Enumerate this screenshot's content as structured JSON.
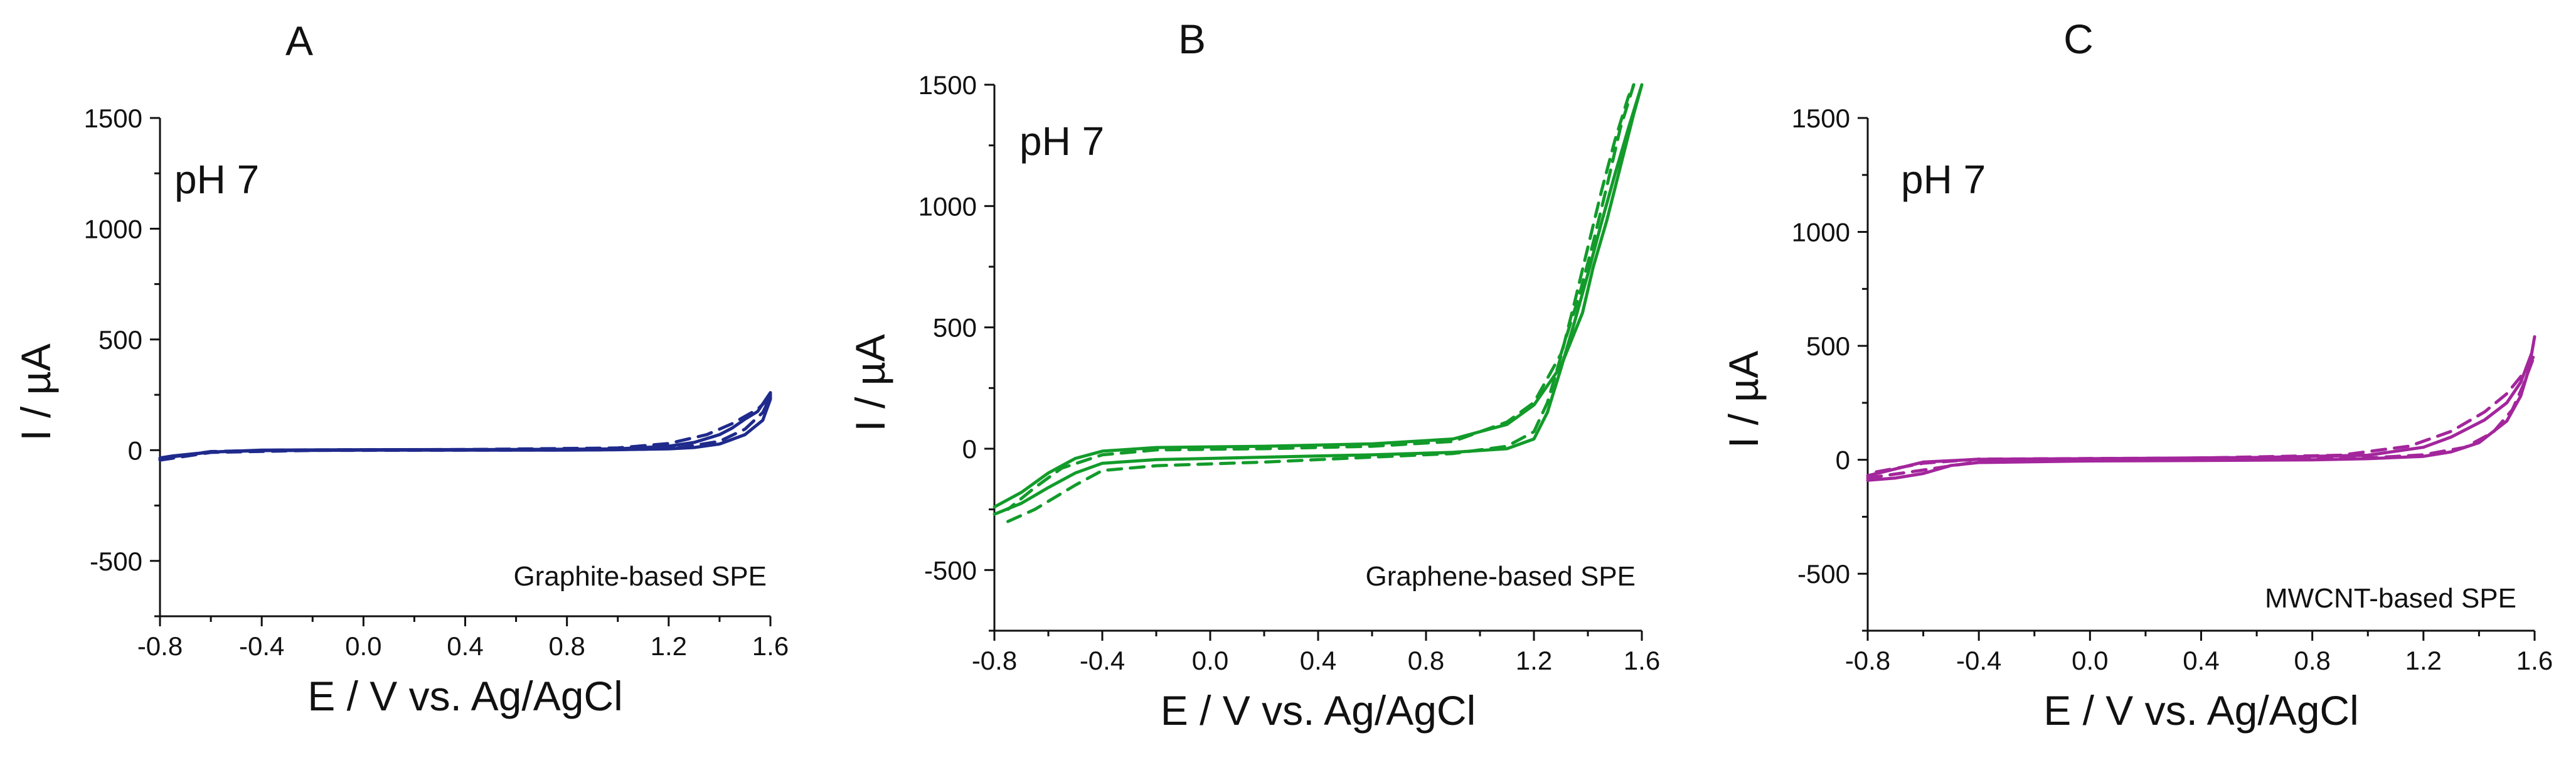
{
  "chart_data": [
    {
      "type": "line",
      "panel": "A",
      "annotation": "pH 7",
      "electrode": "Graphite-based SPE",
      "xlabel": "E / V vs. Ag/AgCl",
      "ylabel": "I / µA",
      "xlim": [
        -0.8,
        1.6
      ],
      "ylim": [
        -750,
        1500
      ],
      "xticks": [
        "-0.8",
        "-0.4",
        "0.0",
        "0.4",
        "0.8",
        "1.2",
        "1.6"
      ],
      "yticks": [
        "-500",
        "0",
        "500",
        "1000",
        "1500"
      ],
      "color": "#1f2a8c",
      "series": [
        {
          "name": "solid",
          "style": "solid",
          "points": [
            [
              -0.8,
              -40
            ],
            [
              -0.75,
              -30
            ],
            [
              -0.6,
              -8
            ],
            [
              -0.4,
              -2
            ],
            [
              0.0,
              0
            ],
            [
              0.4,
              0
            ],
            [
              0.8,
              0
            ],
            [
              1.0,
              2
            ],
            [
              1.2,
              6
            ],
            [
              1.3,
              12
            ],
            [
              1.4,
              28
            ],
            [
              1.5,
              70
            ],
            [
              1.57,
              135
            ],
            [
              1.6,
              230
            ],
            [
              1.6,
              260
            ],
            [
              1.55,
              175
            ],
            [
              1.5,
              140
            ],
            [
              1.45,
              100
            ],
            [
              1.4,
              70
            ],
            [
              1.3,
              35
            ],
            [
              1.2,
              18
            ],
            [
              1.0,
              6
            ],
            [
              0.6,
              3
            ],
            [
              0.0,
              2
            ],
            [
              -0.4,
              0
            ],
            [
              -0.6,
              -8
            ],
            [
              -0.75,
              -26
            ],
            [
              -0.8,
              -35
            ]
          ]
        },
        {
          "name": "dashed",
          "style": "dashed",
          "points": [
            [
              -0.8,
              -45
            ],
            [
              -0.6,
              -10
            ],
            [
              -0.2,
              -1
            ],
            [
              0.4,
              0
            ],
            [
              0.9,
              1
            ],
            [
              1.1,
              4
            ],
            [
              1.25,
              12
            ],
            [
              1.4,
              40
            ],
            [
              1.5,
              95
            ],
            [
              1.57,
              170
            ],
            [
              1.6,
              240
            ],
            [
              1.55,
              185
            ],
            [
              1.45,
              120
            ],
            [
              1.35,
              70
            ],
            [
              1.2,
              30
            ],
            [
              1.0,
              10
            ],
            [
              0.4,
              3
            ],
            [
              -0.3,
              1
            ],
            [
              -0.6,
              -6
            ],
            [
              -0.8,
              -38
            ]
          ]
        }
      ]
    },
    {
      "type": "line",
      "panel": "B",
      "annotation": "pH 7",
      "electrode": "Graphene-based SPE",
      "xlabel": "E / V vs. Ag/AgCl",
      "ylabel": "I / µA",
      "xlim": [
        -0.8,
        1.6
      ],
      "ylim": [
        -750,
        1500
      ],
      "xticks": [
        "-0.8",
        "-0.4",
        "0.0",
        "0.4",
        "0.8",
        "1.2",
        "1.6"
      ],
      "yticks": [
        "-500",
        "0",
        "500",
        "1000",
        "1500"
      ],
      "color": "#129b2a",
      "series": [
        {
          "name": "solid",
          "style": "solid",
          "points": [
            [
              -0.8,
              -270
            ],
            [
              -0.7,
              -225
            ],
            [
              -0.6,
              -160
            ],
            [
              -0.5,
              -100
            ],
            [
              -0.4,
              -60
            ],
            [
              -0.2,
              -45
            ],
            [
              0.2,
              -35
            ],
            [
              0.6,
              -25
            ],
            [
              0.9,
              -15
            ],
            [
              1.1,
              0
            ],
            [
              1.2,
              40
            ],
            [
              1.25,
              150
            ],
            [
              1.3,
              330
            ],
            [
              1.35,
              520
            ],
            [
              1.4,
              720
            ],
            [
              1.45,
              930
            ],
            [
              1.5,
              1130
            ],
            [
              1.55,
              1320
            ],
            [
              1.6,
              1500
            ],
            [
              1.57,
              1380
            ],
            [
              1.52,
              1160
            ],
            [
              1.47,
              940
            ],
            [
              1.42,
              750
            ],
            [
              1.38,
              560
            ],
            [
              1.3,
              340
            ],
            [
              1.2,
              180
            ],
            [
              1.1,
              100
            ],
            [
              0.9,
              40
            ],
            [
              0.6,
              20
            ],
            [
              0.2,
              10
            ],
            [
              -0.2,
              5
            ],
            [
              -0.4,
              -10
            ],
            [
              -0.5,
              -40
            ],
            [
              -0.6,
              -100
            ],
            [
              -0.7,
              -180
            ],
            [
              -0.8,
              -240
            ]
          ]
        },
        {
          "name": "dashed",
          "style": "dashed",
          "points": [
            [
              -0.75,
              -300
            ],
            [
              -0.65,
              -250
            ],
            [
              -0.5,
              -150
            ],
            [
              -0.4,
              -90
            ],
            [
              -0.2,
              -70
            ],
            [
              0.2,
              -55
            ],
            [
              0.6,
              -35
            ],
            [
              0.9,
              -20
            ],
            [
              1.1,
              10
            ],
            [
              1.2,
              70
            ],
            [
              1.25,
              190
            ],
            [
              1.3,
              380
            ],
            [
              1.35,
              600
            ],
            [
              1.4,
              830
            ],
            [
              1.45,
              1060
            ],
            [
              1.5,
              1270
            ],
            [
              1.55,
              1450
            ],
            [
              1.57,
              1500
            ],
            [
              1.52,
              1320
            ],
            [
              1.47,
              1080
            ],
            [
              1.42,
              850
            ],
            [
              1.37,
              640
            ],
            [
              1.3,
              390
            ],
            [
              1.2,
              190
            ],
            [
              1.1,
              110
            ],
            [
              0.9,
              30
            ],
            [
              0.6,
              10
            ],
            [
              0.2,
              0
            ],
            [
              -0.2,
              -5
            ],
            [
              -0.4,
              -25
            ],
            [
              -0.55,
              -80
            ],
            [
              -0.65,
              -160
            ],
            [
              -0.75,
              -250
            ]
          ]
        }
      ]
    },
    {
      "type": "line",
      "panel": "C",
      "annotation": "pH 7",
      "electrode": "MWCNT-based SPE",
      "xlabel": "E / V vs. Ag/AgCl",
      "ylabel": "I / µA",
      "xlim": [
        -0.8,
        1.6
      ],
      "ylim": [
        -750,
        1500
      ],
      "xticks": [
        "-0.8",
        "-0.4",
        "0.0",
        "0.4",
        "0.8",
        "1.2",
        "1.6"
      ],
      "yticks": [
        "-500",
        "0",
        "500",
        "1000",
        "1500"
      ],
      "color": "#a3269c",
      "series": [
        {
          "name": "solid",
          "style": "solid",
          "points": [
            [
              -0.8,
              -90
            ],
            [
              -0.7,
              -80
            ],
            [
              -0.6,
              -60
            ],
            [
              -0.5,
              -25
            ],
            [
              -0.4,
              -12
            ],
            [
              0.0,
              -5
            ],
            [
              0.4,
              -3
            ],
            [
              0.8,
              0
            ],
            [
              1.0,
              5
            ],
            [
              1.2,
              15
            ],
            [
              1.3,
              35
            ],
            [
              1.4,
              75
            ],
            [
              1.5,
              170
            ],
            [
              1.55,
              280
            ],
            [
              1.58,
              400
            ],
            [
              1.6,
              540
            ],
            [
              1.59,
              470
            ],
            [
              1.55,
              340
            ],
            [
              1.5,
              250
            ],
            [
              1.42,
              175
            ],
            [
              1.3,
              100
            ],
            [
              1.2,
              55
            ],
            [
              1.0,
              20
            ],
            [
              0.6,
              10
            ],
            [
              0.0,
              5
            ],
            [
              -0.4,
              2
            ],
            [
              -0.6,
              -10
            ],
            [
              -0.7,
              -40
            ],
            [
              -0.8,
              -70
            ]
          ]
        },
        {
          "name": "dashed",
          "style": "dashed",
          "points": [
            [
              -0.8,
              -80
            ],
            [
              -0.6,
              -45
            ],
            [
              -0.4,
              -8
            ],
            [
              0.0,
              -2
            ],
            [
              0.6,
              0
            ],
            [
              1.0,
              8
            ],
            [
              1.2,
              22
            ],
            [
              1.35,
              55
            ],
            [
              1.45,
              120
            ],
            [
              1.52,
              220
            ],
            [
              1.56,
              330
            ],
            [
              1.6,
              460
            ],
            [
              1.56,
              380
            ],
            [
              1.5,
              290
            ],
            [
              1.42,
              210
            ],
            [
              1.3,
              125
            ],
            [
              1.15,
              60
            ],
            [
              0.9,
              20
            ],
            [
              0.4,
              8
            ],
            [
              -0.4,
              3
            ],
            [
              -0.6,
              -15
            ],
            [
              -0.8,
              -60
            ]
          ]
        }
      ]
    }
  ]
}
